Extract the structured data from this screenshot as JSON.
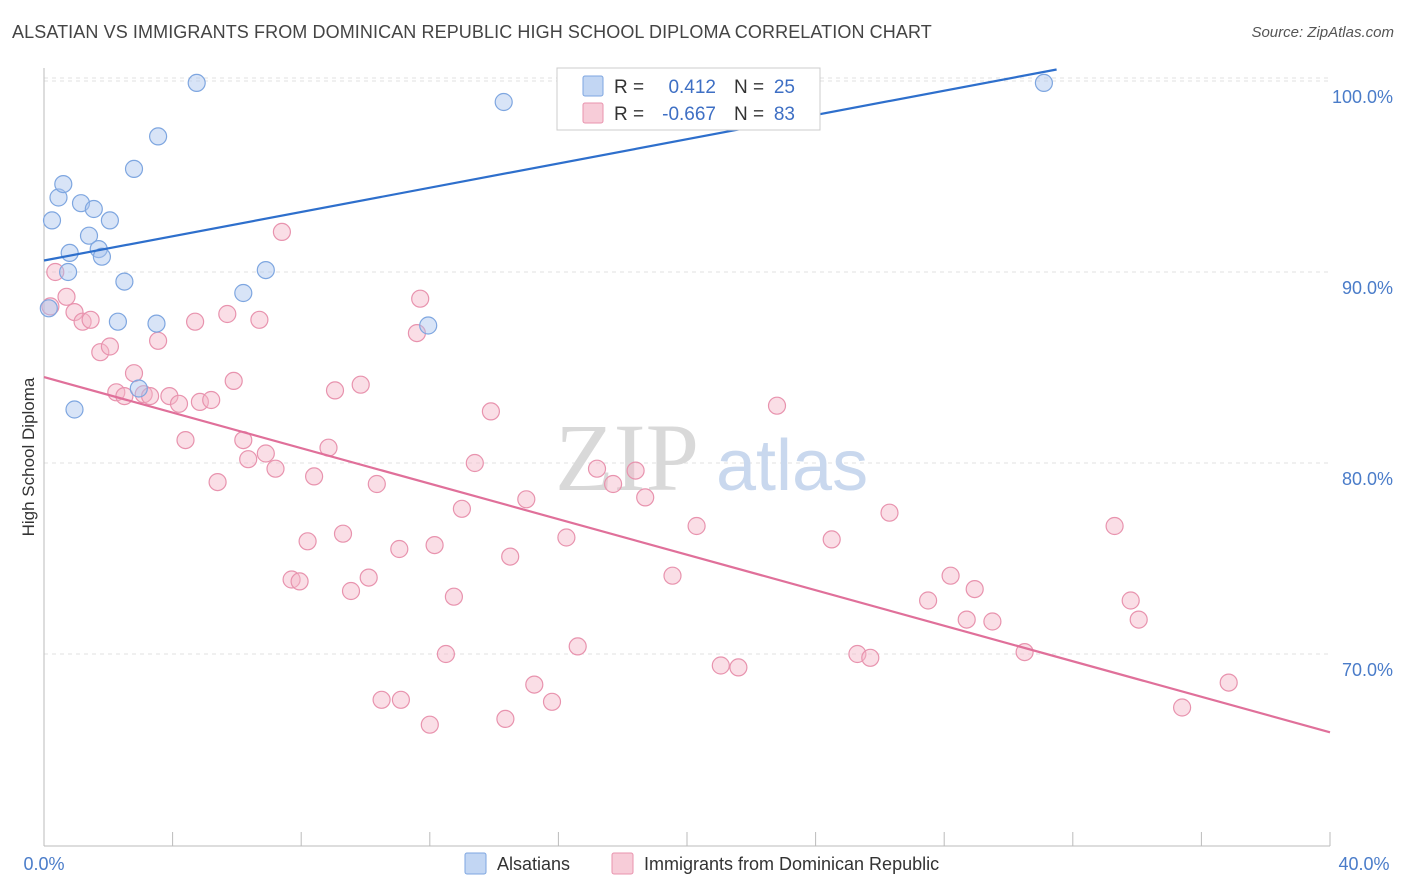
{
  "header": {
    "title": "ALSATIAN VS IMMIGRANTS FROM DOMINICAN REPUBLIC HIGH SCHOOL DIPLOMA CORRELATION CHART",
    "source": "Source: ZipAtlas.com"
  },
  "watermark": {
    "part1": "ZIP",
    "part2": "atlas"
  },
  "legend": {
    "r_label": "R =",
    "n_label": "N =",
    "rows": [
      {
        "r": "0.412",
        "n": "25",
        "color": "#a8c4ee"
      },
      {
        "r": "-0.667",
        "n": "83",
        "color": "#f4b6c8"
      }
    ]
  },
  "bottom_legend": [
    {
      "label": "Alsatians",
      "color": "#a8c4ee"
    },
    {
      "label": "Immigrants from Dominican Republic",
      "color": "#f4b6c8"
    }
  ],
  "chart_data": {
    "type": "scatter",
    "title": "ALSATIAN VS IMMIGRANTS FROM DOMINICAN REPUBLIC HIGH SCHOOL DIPLOMA CORRELATION CHART",
    "xlabel": "",
    "ylabel": "High School Diploma",
    "xlim": [
      0,
      40
    ],
    "ylim": [
      60,
      101
    ],
    "x_tick_labels": [
      "0.0%",
      "40.0%"
    ],
    "y_ticks": [
      70,
      80,
      90,
      100
    ],
    "y_tick_labels": [
      "70.0%",
      "80.0%",
      "90.0%",
      "100.0%"
    ],
    "grid": true,
    "legend_position": "top-center",
    "series": [
      {
        "name": "Alsatians",
        "color": "#a8c4ee",
        "line_color": "#2e6fcc",
        "trend": [
          [
            0,
            90.6
          ],
          [
            40,
            103.3
          ]
        ],
        "points": [
          [
            0.15,
            88.1
          ],
          [
            0.25,
            92.7
          ],
          [
            0.45,
            93.9
          ],
          [
            0.6,
            94.6
          ],
          [
            0.8,
            91.0
          ],
          [
            0.75,
            90.0
          ],
          [
            1.15,
            93.6
          ],
          [
            1.4,
            91.9
          ],
          [
            1.55,
            93.3
          ],
          [
            1.7,
            91.2
          ],
          [
            1.8,
            90.8
          ],
          [
            2.05,
            92.7
          ],
          [
            2.3,
            87.4
          ],
          [
            2.5,
            89.5
          ],
          [
            2.8,
            95.4
          ],
          [
            2.95,
            83.9
          ],
          [
            3.5,
            87.3
          ],
          [
            3.55,
            97.1
          ],
          [
            4.75,
            99.9
          ],
          [
            6.2,
            88.9
          ],
          [
            6.9,
            90.1
          ],
          [
            0.95,
            82.8
          ],
          [
            11.95,
            87.2
          ],
          [
            14.3,
            98.9
          ],
          [
            31.1,
            99.9
          ]
        ]
      },
      {
        "name": "Immigrants from Dominican Republic",
        "color": "#f4b6c8",
        "line_color": "#e0709a",
        "trend": [
          [
            0,
            84.5
          ],
          [
            40,
            65.9
          ]
        ],
        "points": [
          [
            0.2,
            88.2
          ],
          [
            0.35,
            90.0
          ],
          [
            0.7,
            88.7
          ],
          [
            0.95,
            87.9
          ],
          [
            1.2,
            87.4
          ],
          [
            1.45,
            87.5
          ],
          [
            1.75,
            85.8
          ],
          [
            2.05,
            86.1
          ],
          [
            2.25,
            83.7
          ],
          [
            2.5,
            83.5
          ],
          [
            2.8,
            84.7
          ],
          [
            3.1,
            83.6
          ],
          [
            3.3,
            83.5
          ],
          [
            3.55,
            86.4
          ],
          [
            3.9,
            83.5
          ],
          [
            4.2,
            83.1
          ],
          [
            4.4,
            81.2
          ],
          [
            4.7,
            87.4
          ],
          [
            4.85,
            83.2
          ],
          [
            5.2,
            83.3
          ],
          [
            5.4,
            79.0
          ],
          [
            5.7,
            87.8
          ],
          [
            5.9,
            84.3
          ],
          [
            6.2,
            81.2
          ],
          [
            6.35,
            80.2
          ],
          [
            6.7,
            87.5
          ],
          [
            6.9,
            80.5
          ],
          [
            7.2,
            79.7
          ],
          [
            7.4,
            92.1
          ],
          [
            7.7,
            73.9
          ],
          [
            7.95,
            73.8
          ],
          [
            8.2,
            75.9
          ],
          [
            8.4,
            79.3
          ],
          [
            8.85,
            80.8
          ],
          [
            9.05,
            83.8
          ],
          [
            9.3,
            76.3
          ],
          [
            9.55,
            73.3
          ],
          [
            9.85,
            84.1
          ],
          [
            10.1,
            74.0
          ],
          [
            10.35,
            78.9
          ],
          [
            10.5,
            67.6
          ],
          [
            11.05,
            75.5
          ],
          [
            11.1,
            67.6
          ],
          [
            11.6,
            86.8
          ],
          [
            11.7,
            88.6
          ],
          [
            12.0,
            66.3
          ],
          [
            12.15,
            75.7
          ],
          [
            12.5,
            70.0
          ],
          [
            12.75,
            73.0
          ],
          [
            13.0,
            77.6
          ],
          [
            13.4,
            80.0
          ],
          [
            13.9,
            82.7
          ],
          [
            14.35,
            66.6
          ],
          [
            14.5,
            75.1
          ],
          [
            15.0,
            78.1
          ],
          [
            15.25,
            68.4
          ],
          [
            15.8,
            67.5
          ],
          [
            16.25,
            76.1
          ],
          [
            16.6,
            70.4
          ],
          [
            17.2,
            79.7
          ],
          [
            17.7,
            78.9
          ],
          [
            18.4,
            79.6
          ],
          [
            18.7,
            78.2
          ],
          [
            19.55,
            74.1
          ],
          [
            20.3,
            76.7
          ],
          [
            21.05,
            69.4
          ],
          [
            21.6,
            69.3
          ],
          [
            22.8,
            83.0
          ],
          [
            24.5,
            76.0
          ],
          [
            25.3,
            70.0
          ],
          [
            25.7,
            69.8
          ],
          [
            26.3,
            77.4
          ],
          [
            27.5,
            72.8
          ],
          [
            28.2,
            74.1
          ],
          [
            28.7,
            71.8
          ],
          [
            28.95,
            73.4
          ],
          [
            29.5,
            71.7
          ],
          [
            30.5,
            70.1
          ],
          [
            33.3,
            76.7
          ],
          [
            33.8,
            72.8
          ],
          [
            34.05,
            71.8
          ],
          [
            35.4,
            67.2
          ],
          [
            36.85,
            68.5
          ]
        ]
      }
    ]
  }
}
